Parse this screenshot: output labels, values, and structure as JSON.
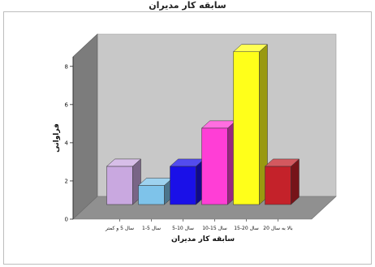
{
  "title": "سابقه کار مدیران",
  "chart_data": {
    "type": "bar",
    "title": "سابقه کار مدیران",
    "xlabel": "سابقه کار مدیران",
    "ylabel": "فراوانی",
    "categories": [
      "سال 5 و کمتر",
      "سال 5-1",
      "سال 10-5",
      "سال 15-10",
      "سال 20-15",
      "بالا به سال 20"
    ],
    "values": [
      2.0,
      1.0,
      2.0,
      4.0,
      8.0,
      2.0
    ],
    "colors": [
      "#c9a8e0",
      "#7ec3ea",
      "#1a10e8",
      "#ff3ed6",
      "#ffff1a",
      "#c4222a"
    ],
    "ylim": [
      0,
      8.5
    ],
    "yticks": [
      0,
      2,
      4,
      6,
      8
    ],
    "grid": false,
    "legend": "none",
    "three_d": true
  },
  "style": {
    "back_wall": "#c8c8c8",
    "side_wall": "#7c7c7c",
    "floor": "#909090"
  }
}
